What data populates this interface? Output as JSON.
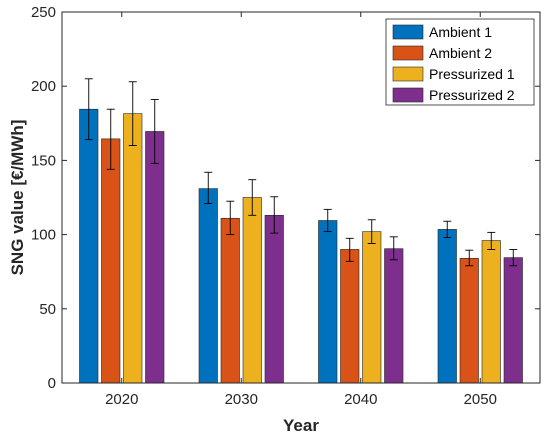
{
  "chart_data": {
    "type": "bar",
    "categories": [
      "2020",
      "2030",
      "2040",
      "2050"
    ],
    "series": [
      {
        "name": "Ambient 1",
        "color": "#0072BD",
        "values": [
          184.5,
          131,
          109.5,
          103.5
        ],
        "err_low": [
          164,
          121,
          102,
          98
        ],
        "err_high": [
          205,
          142,
          117,
          109
        ]
      },
      {
        "name": "Ambient 2",
        "color": "#D95319",
        "values": [
          164.5,
          111,
          90,
          84
        ],
        "err_low": [
          144,
          100,
          82,
          79
        ],
        "err_high": [
          184.5,
          122.5,
          97.5,
          89.5
        ]
      },
      {
        "name": "Pressurized 1",
        "color": "#EDB120",
        "values": [
          181.5,
          125,
          102,
          96
        ],
        "err_low": [
          160,
          113,
          94,
          90
        ],
        "err_high": [
          203,
          137,
          110,
          101.5
        ]
      },
      {
        "name": "Pressurized 2",
        "color": "#7E2F8E",
        "values": [
          169.5,
          113,
          90.5,
          84.5
        ],
        "err_low": [
          148,
          101,
          83,
          79
        ],
        "err_high": [
          191,
          125.5,
          98.5,
          90
        ]
      }
    ],
    "xlabel": "Year",
    "ylabel": "SNG value [€/MWh]",
    "ylim": [
      0,
      250
    ],
    "yticks": [
      "0",
      "50",
      "100",
      "150",
      "200",
      "250"
    ],
    "yticks_values": [
      0,
      50,
      100,
      150,
      200,
      250
    ],
    "grid": false,
    "legend_position": "top-right",
    "error_bars": true
  }
}
